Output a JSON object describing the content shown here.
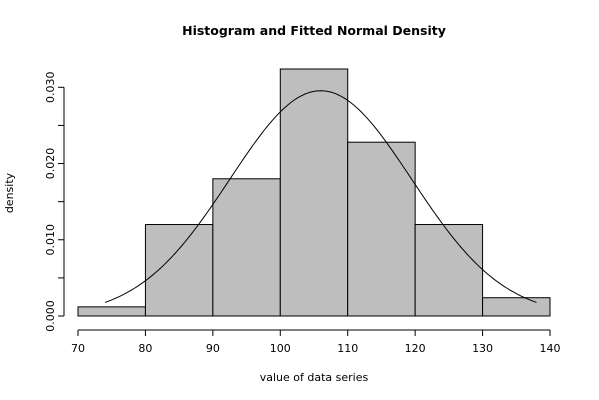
{
  "chart_data": {
    "type": "bar",
    "subtype": "histogram",
    "title": "Histogram and Fitted Normal Density",
    "xlabel": "value of data series",
    "ylabel": "density",
    "bins": [
      {
        "x0": 70,
        "x1": 80,
        "density": 0.0012
      },
      {
        "x0": 80,
        "x1": 90,
        "density": 0.012
      },
      {
        "x0": 90,
        "x1": 100,
        "density": 0.018
      },
      {
        "x0": 100,
        "x1": 110,
        "density": 0.0324
      },
      {
        "x0": 110,
        "x1": 120,
        "density": 0.0228
      },
      {
        "x0": 120,
        "x1": 130,
        "density": 0.012
      },
      {
        "x0": 130,
        "x1": 140,
        "density": 0.0024
      }
    ],
    "fitted_normal": {
      "mean": 106,
      "sd": 13.5,
      "x_from": 74,
      "x_to": 138
    },
    "xlim": [
      70,
      140
    ],
    "ylim": [
      0,
      0.0324
    ],
    "x_ticks": [
      70,
      80,
      90,
      100,
      110,
      120,
      130,
      140
    ],
    "x_tick_labels": [
      "70",
      "80",
      "90",
      "100",
      "110",
      "120",
      "130",
      "140"
    ],
    "y_ticks": [
      0,
      0.005,
      0.01,
      0.015,
      0.02,
      0.025,
      0.03
    ],
    "y_tick_labels": [
      "0.000",
      "",
      "0.010",
      "",
      "0.020",
      "",
      "0.030"
    ],
    "grid": false,
    "legend": "none",
    "colors": {
      "bar_fill": "#bebebe",
      "bar_stroke": "#000000",
      "curve": "#000000"
    }
  }
}
